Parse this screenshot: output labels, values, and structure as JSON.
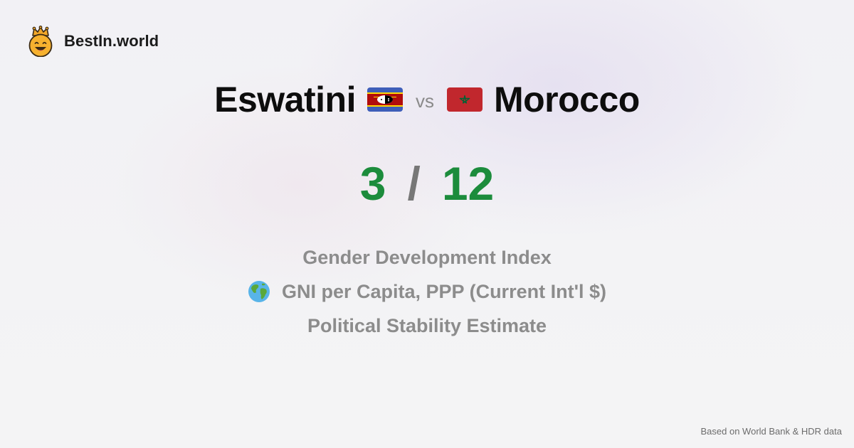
{
  "brand": {
    "name": "BestIn.world",
    "icon": "crown-smiley-icon"
  },
  "comparison": {
    "left_country": "Eswatini",
    "left_flag": "eswatini-flag-icon",
    "vs_label": "vs",
    "right_country": "Morocco",
    "right_flag": "morocco-flag-icon"
  },
  "score": {
    "left": "3",
    "separator": "/",
    "right": "12",
    "color": "#1c8c3c"
  },
  "metrics": [
    {
      "label": "Gender Development Index"
    },
    {
      "label": "GNI per Capita, PPP (Current Int'l $)",
      "icon": "globe-icon"
    },
    {
      "label": "Political Stability Estimate"
    }
  ],
  "footer": {
    "source": "Based on World Bank & HDR data"
  }
}
